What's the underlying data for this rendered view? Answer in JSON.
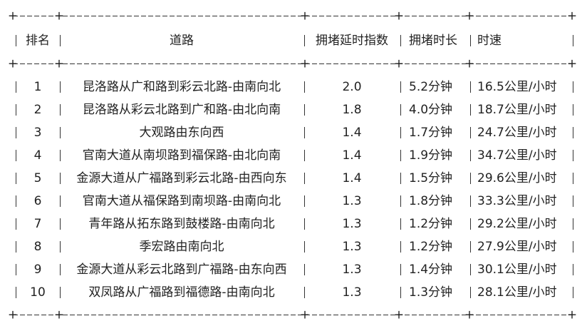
{
  "table": {
    "headers": [
      "排名",
      "道路",
      "拥堵延时指数",
      "拥堵时长",
      "时速"
    ],
    "rows": [
      [
        "1",
        "昆洛路从广和路到彩云北路-由南向北",
        "2.0",
        "5.2分钟",
        "16.5公里/小时"
      ],
      [
        "2",
        "昆洛路从彩云北路到广和路-由北向南",
        "1.8",
        "4.0分钟",
        "18.7公里/小时"
      ],
      [
        "3",
        "大观路由东向西",
        "1.4",
        "1.7分钟",
        "24.7公里/小时"
      ],
      [
        "4",
        "官南大道从南坝路到福保路-由北向南",
        "1.4",
        "1.9分钟",
        "34.7公里/小时"
      ],
      [
        "5",
        "金源大道从广福路到彩云北路-由西向东",
        "1.4",
        "1.5分钟",
        "29.6公里/小时"
      ],
      [
        "6",
        "官南大道从福保路到南坝路-由南向北",
        "1.3",
        "1.8分钟",
        "33.3公里/小时"
      ],
      [
        "7",
        "青年路从拓东路到鼓楼路-由南向北",
        "1.3",
        "1.2分钟",
        "29.2公里/小时"
      ],
      [
        "8",
        "季宏路由南向北",
        "1.3",
        "1.2分钟",
        "27.9公里/小时"
      ],
      [
        "9",
        "金源大道从彩云北路到广福路-由东向西",
        "1.3",
        "1.4分钟",
        "30.1公里/小时"
      ],
      [
        "10",
        "双凤路从广福路到福德路-由南向北",
        "1.3",
        "1.3分钟",
        "28.1公里/小时"
      ]
    ]
  }
}
